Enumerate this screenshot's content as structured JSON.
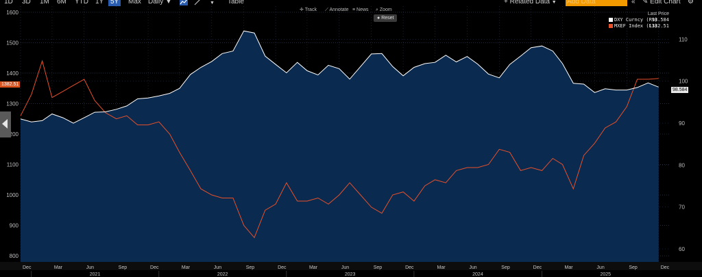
{
  "toolbar": {
    "range_buttons": [
      "1D",
      "3D",
      "1M",
      "6M",
      "YTD",
      "1Y",
      "5Y",
      "Max"
    ],
    "active_range": "5Y",
    "period": "Daily",
    "table_label": "Table",
    "related_data": "Related Data",
    "add_data_placeholder": "Add Data",
    "edit_chart": "Edit Chart"
  },
  "controls": {
    "track": "Track",
    "annotate": "Annotate",
    "news": "News",
    "zoom": "Zoom",
    "reset": "Reset"
  },
  "legend": {
    "header": "Last Price",
    "items": [
      {
        "label": "DXY Curncy (R1)",
        "value": "98.584",
        "color": "#ffffff"
      },
      {
        "label": "MXEF Index (L1)",
        "value": "1382.51",
        "color": "#e8502a"
      }
    ]
  },
  "badges": {
    "left": "1382.51",
    "right": "98.584"
  },
  "chart_data": {
    "type": "line",
    "x_range": [
      "2020-12-01",
      "2025-12-31"
    ],
    "left_axis": {
      "ylim": [
        780,
        1620
      ],
      "ticks": [
        800,
        900,
        1000,
        1100,
        1200,
        1300,
        1400,
        1500,
        1600
      ]
    },
    "right_axis": {
      "ylim": [
        56.9,
        117.9
      ],
      "ticks": [
        60,
        70,
        80,
        90,
        100,
        110
      ]
    },
    "x_month_labels": [
      "Dec",
      "Mar",
      "Jun",
      "Sep",
      "Dec",
      "Mar",
      "Jun",
      "Sep",
      "Dec",
      "Mar",
      "Jun",
      "Sep",
      "Dec",
      "Mar",
      "Jun",
      "Sep",
      "Dec",
      "Mar",
      "Jun",
      "Sep",
      "Dec"
    ],
    "x_year_labels": [
      "2021",
      "2022",
      "2023",
      "2024",
      "2025"
    ],
    "grid": true,
    "legend_position": "top-right",
    "series": [
      {
        "name": "DXY Curncy (R1)",
        "axis": "right",
        "color": "#ffffff",
        "fill": "#0b2a4f",
        "x": [
          "2020-12-01",
          "2021-01-01",
          "2021-02-01",
          "2021-03-01",
          "2021-04-01",
          "2021-05-01",
          "2021-06-01",
          "2021-07-01",
          "2021-08-01",
          "2021-09-01",
          "2021-10-01",
          "2021-11-01",
          "2021-12-01",
          "2022-01-01",
          "2022-02-01",
          "2022-03-01",
          "2022-04-01",
          "2022-05-01",
          "2022-06-01",
          "2022-07-01",
          "2022-08-01",
          "2022-09-01",
          "2022-10-01",
          "2022-11-01",
          "2022-12-01",
          "2023-01-01",
          "2023-02-01",
          "2023-03-01",
          "2023-04-01",
          "2023-05-01",
          "2023-06-01",
          "2023-07-01",
          "2023-08-01",
          "2023-09-01",
          "2023-10-01",
          "2023-11-01",
          "2023-12-01",
          "2024-01-01",
          "2024-02-01",
          "2024-03-01",
          "2024-04-01",
          "2024-05-01",
          "2024-06-01",
          "2024-07-01",
          "2024-08-01",
          "2024-09-01",
          "2024-10-01",
          "2024-11-01",
          "2024-12-01",
          "2025-01-01",
          "2025-02-01",
          "2025-03-01",
          "2025-04-01",
          "2025-05-01",
          "2025-06-01",
          "2025-07-01",
          "2025-08-01",
          "2025-09-01",
          "2025-10-01",
          "2025-11-01",
          "2025-12-01"
        ],
        "y": [
          91.0,
          90.3,
          90.6,
          92.2,
          91.3,
          90.0,
          91.3,
          92.6,
          92.7,
          93.3,
          94.1,
          95.8,
          96.0,
          96.5,
          97.1,
          98.3,
          101.6,
          103.3,
          104.7,
          106.6,
          107.2,
          112.0,
          111.5,
          106.0,
          104.0,
          102.0,
          104.5,
          102.5,
          101.5,
          103.8,
          103.0,
          100.5,
          103.5,
          106.5,
          106.6,
          103.5,
          101.3,
          103.3,
          104.2,
          104.5,
          106.2,
          104.6,
          105.9,
          104.1,
          101.7,
          100.8,
          104.0,
          106.0,
          108.0,
          108.4,
          107.2,
          104.2,
          99.5,
          99.3,
          97.3,
          98.2,
          97.9,
          97.9,
          98.5,
          99.6,
          98.6
        ]
      },
      {
        "name": "MXEF Index (L1)",
        "axis": "left",
        "color": "#e8502a",
        "x": [
          "2020-12-01",
          "2021-01-01",
          "2021-02-01",
          "2021-03-01",
          "2021-04-01",
          "2021-05-01",
          "2021-06-01",
          "2021-07-01",
          "2021-08-01",
          "2021-09-01",
          "2021-10-01",
          "2021-11-01",
          "2021-12-01",
          "2022-01-01",
          "2022-02-01",
          "2022-03-01",
          "2022-04-01",
          "2022-05-01",
          "2022-06-01",
          "2022-07-01",
          "2022-08-01",
          "2022-09-01",
          "2022-10-01",
          "2022-11-01",
          "2022-12-01",
          "2023-01-01",
          "2023-02-01",
          "2023-03-01",
          "2023-04-01",
          "2023-05-01",
          "2023-06-01",
          "2023-07-01",
          "2023-08-01",
          "2023-09-01",
          "2023-10-01",
          "2023-11-01",
          "2023-12-01",
          "2024-01-01",
          "2024-02-01",
          "2024-03-01",
          "2024-04-01",
          "2024-05-01",
          "2024-06-01",
          "2024-07-01",
          "2024-08-01",
          "2024-09-01",
          "2024-10-01",
          "2024-11-01",
          "2024-12-01",
          "2025-01-01",
          "2025-02-01",
          "2025-03-01",
          "2025-04-01",
          "2025-05-01",
          "2025-06-01",
          "2025-07-01",
          "2025-08-01",
          "2025-09-01",
          "2025-10-01",
          "2025-11-01",
          "2025-12-01"
        ],
        "y": [
          1260,
          1330,
          1440,
          1320,
          1340,
          1360,
          1380,
          1310,
          1270,
          1250,
          1260,
          1230,
          1230,
          1240,
          1200,
          1140,
          1080,
          1020,
          1000,
          990,
          990,
          900,
          860,
          950,
          970,
          1040,
          980,
          980,
          990,
          970,
          1000,
          1040,
          1000,
          960,
          940,
          1000,
          1010,
          980,
          1030,
          1050,
          1040,
          1080,
          1090,
          1090,
          1100,
          1150,
          1140,
          1080,
          1090,
          1080,
          1120,
          1100,
          1020,
          1130,
          1170,
          1220,
          1240,
          1290,
          1380,
          1380,
          1382.5
        ]
      }
    ]
  }
}
